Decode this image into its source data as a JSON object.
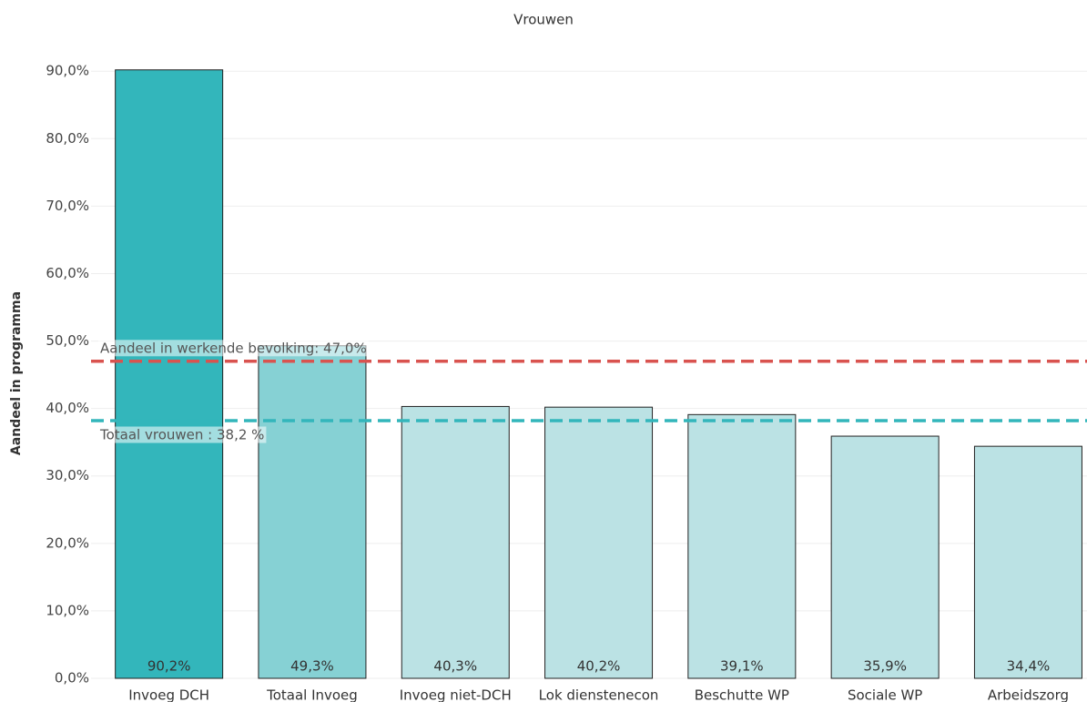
{
  "chart_data": {
    "type": "bar",
    "title": "Vrouwen",
    "y_label": "Aandeel in programma",
    "categories": [
      "Invoeg DCH",
      "Totaal Invoeg",
      "Invoeg niet-DCH",
      "Lok dienstenecon",
      "Beschutte WP",
      "Sociale WP",
      "Arbeidszorg"
    ],
    "values": [
      90.2,
      49.3,
      40.3,
      40.2,
      39.1,
      35.9,
      34.4
    ],
    "value_labels": [
      "90,2%",
      "49,3%",
      "40,3%",
      "40,2%",
      "39,1%",
      "35,9%",
      "34,4%"
    ],
    "colors": [
      "#33b6bb",
      "#86d1d4",
      "#bbe2e4",
      "#bbe2e4",
      "#bbe2e4",
      "#bbe2e4",
      "#bbe2e4"
    ],
    "ylim": [
      0,
      93
    ],
    "yticks": [
      {
        "value": 0,
        "label": "0,0%"
      },
      {
        "value": 10,
        "label": "10,0%"
      },
      {
        "value": 20,
        "label": "20,0%"
      },
      {
        "value": 30,
        "label": "30,0%"
      },
      {
        "value": 40,
        "label": "40,0%"
      },
      {
        "value": 50,
        "label": "50,0%"
      },
      {
        "value": 60,
        "label": "60,0%"
      },
      {
        "value": 70,
        "label": "70,0%"
      },
      {
        "value": 80,
        "label": "80,0%"
      },
      {
        "value": 90,
        "label": "90,0%"
      }
    ],
    "grid": true,
    "reference_lines": [
      {
        "value": 47.0,
        "label": "Aandeel in werkende bevolking: 47,0%",
        "color": "#d9534f"
      },
      {
        "value": 38.2,
        "label": "Totaal vrouwen : 38,2 %",
        "color": "#33b6bb"
      }
    ]
  }
}
